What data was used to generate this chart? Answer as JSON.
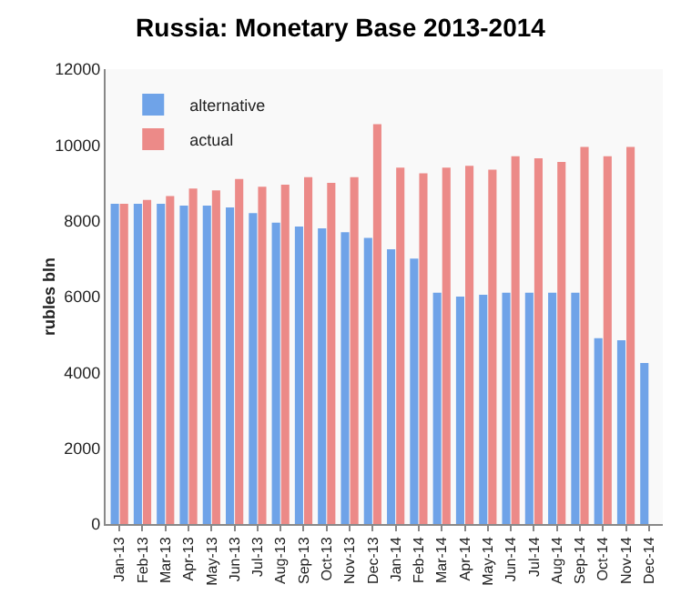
{
  "chart_data": {
    "type": "bar",
    "title": "Russia: Monetary Base 2013-2014",
    "ylabel": "rubles bln",
    "categories": [
      "Jan-13",
      "Feb-13",
      "Mar-13",
      "Apr-13",
      "May-13",
      "Jun-13",
      "Jul-13",
      "Aug-13",
      "Sep-13",
      "Oct-13",
      "Nov-13",
      "Dec-13",
      "Jan-14",
      "Feb-14",
      "Mar-14",
      "Apr-14",
      "May-14",
      "Jun-14",
      "Jul-14",
      "Aug-14",
      "Sep-14",
      "Oct-14",
      "Nov-14",
      "Dec-14"
    ],
    "series": [
      {
        "name": "alternative",
        "color": "#6fa3e8",
        "values": [
          8450,
          8450,
          8450,
          8400,
          8400,
          8350,
          8200,
          7950,
          7850,
          7800,
          7700,
          7550,
          7250,
          7000,
          6100,
          6000,
          6050,
          6100,
          6100,
          6100,
          6100,
          4900,
          4850,
          4250
        ]
      },
      {
        "name": "actual",
        "color": "#ec8a88",
        "values": [
          8450,
          8550,
          8650,
          8850,
          8800,
          9100,
          8900,
          8950,
          9150,
          9000,
          9150,
          10550,
          9400,
          9250,
          9400,
          9450,
          9350,
          9700,
          9650,
          9550,
          9950,
          9700,
          9950,
          null
        ]
      }
    ],
    "ylim": [
      0,
      12000
    ],
    "yticks": [
      0,
      2000,
      4000,
      6000,
      8000,
      10000,
      12000
    ],
    "grid": false,
    "legend": "top left"
  }
}
